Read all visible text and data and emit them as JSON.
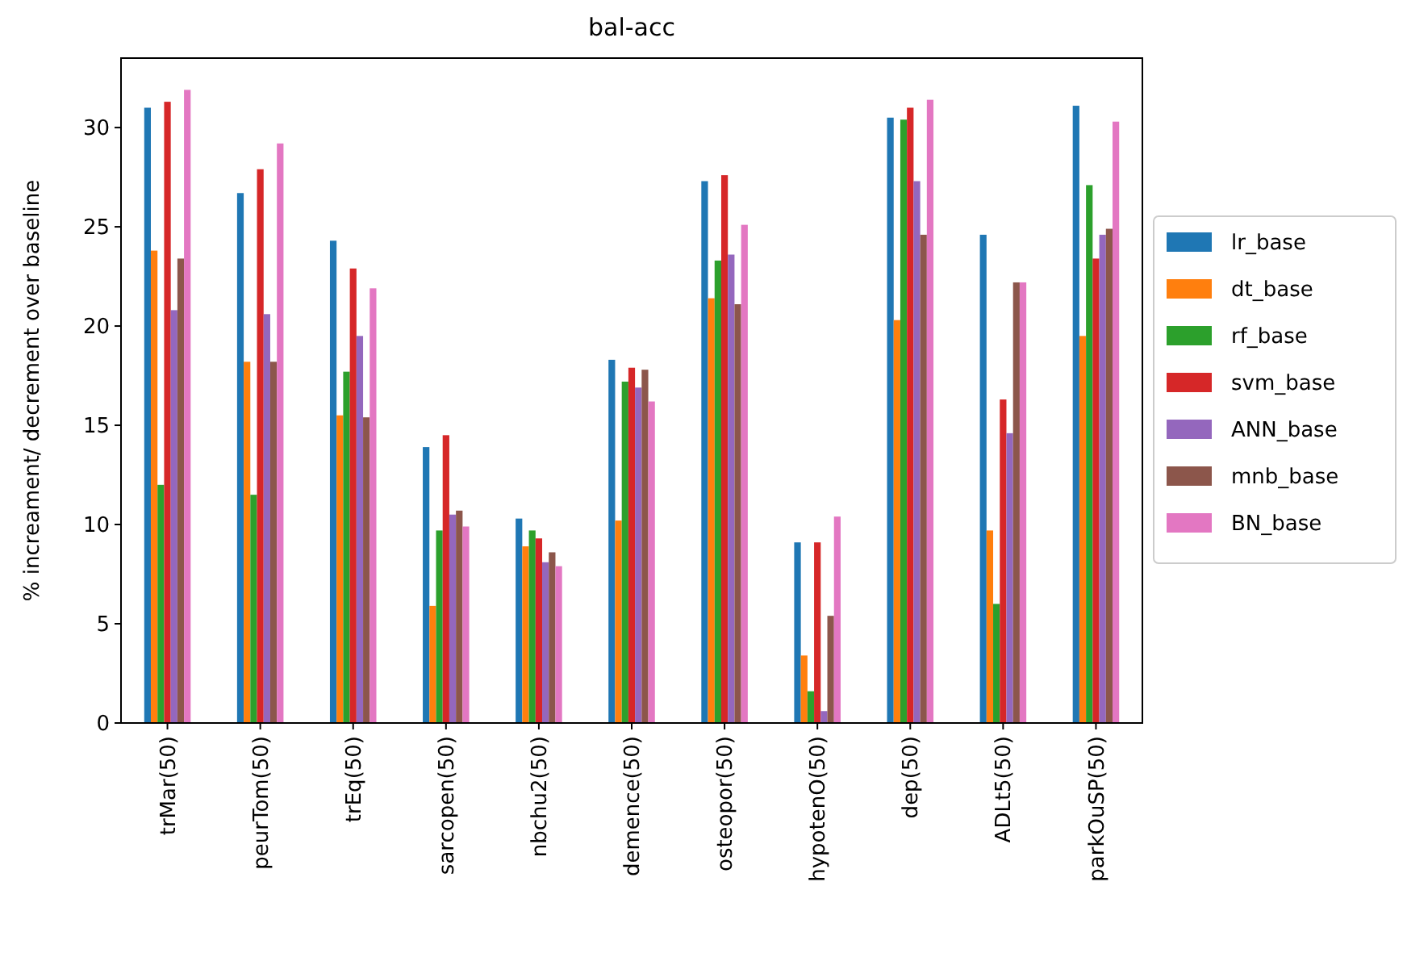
{
  "chart_data": {
    "type": "bar",
    "title": "bal-acc",
    "ylabel": "% increament/ decrement over baseline",
    "categories": [
      "trMar(50)",
      "peurTom(50)",
      "trEq(50)",
      "sarcopen(50)",
      "nbchu2(50)",
      "demence(50)",
      "osteopor(50)",
      "hypotenO(50)",
      "dep(50)",
      "ADLt5(50)",
      "parkOuSP(50)"
    ],
    "series": [
      {
        "name": "lr_base",
        "color": "#1f77b4",
        "values": [
          31,
          26.7,
          24.3,
          13.9,
          10.3,
          18.3,
          27.3,
          9.1,
          30.5,
          24.6,
          31.1
        ]
      },
      {
        "name": "dt_base",
        "color": "#ff7f0e",
        "values": [
          23.8,
          18.2,
          15.5,
          5.9,
          8.9,
          10.2,
          21.4,
          3.4,
          20.3,
          9.7,
          19.5
        ]
      },
      {
        "name": "rf_base",
        "color": "#2ca02c",
        "values": [
          12,
          11.5,
          17.7,
          9.7,
          9.7,
          17.2,
          23.3,
          1.6,
          30.4,
          6,
          27.1
        ]
      },
      {
        "name": "svm_base",
        "color": "#d62728",
        "values": [
          31.3,
          27.9,
          22.9,
          14.5,
          9.3,
          17.9,
          27.6,
          9.1,
          31,
          16.3,
          23.4
        ]
      },
      {
        "name": "ANN_base",
        "color": "#9467bd",
        "values": [
          20.8,
          20.6,
          19.5,
          10.5,
          8.1,
          16.9,
          23.6,
          0.6,
          27.3,
          14.6,
          24.6
        ]
      },
      {
        "name": "mnb_base",
        "color": "#8c564b",
        "values": [
          23.4,
          18.2,
          15.4,
          10.7,
          8.6,
          17.8,
          21.1,
          5.4,
          24.6,
          22.2,
          24.9
        ]
      },
      {
        "name": "BN_base",
        "color": "#e377c2",
        "values": [
          31.9,
          29.2,
          21.9,
          9.9,
          7.9,
          16.2,
          25.1,
          10.4,
          31.4,
          22.2,
          30.3
        ]
      }
    ],
    "ylim": [
      0,
      33.5
    ],
    "yticks": [
      0,
      5,
      10,
      15,
      20,
      25,
      30
    ],
    "grid": false,
    "legend": "right"
  }
}
